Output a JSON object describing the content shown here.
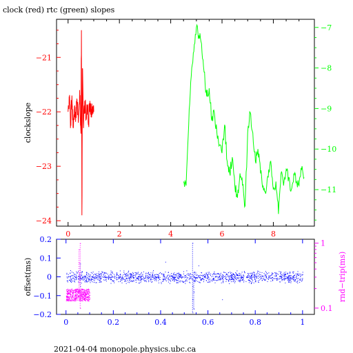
{
  "chart_data": [
    {
      "type": "line",
      "title": "clock (red) rtc (green) slopes",
      "ylabel": "clockslope",
      "xlim": [
        -0.45,
        9.6
      ],
      "x_ticks": [
        0,
        2,
        4,
        6,
        8
      ],
      "y_left": {
        "lim": [
          -24.1,
          -20.3
        ],
        "ticks": [
          -24,
          -23,
          -22,
          -21
        ],
        "color": "#ff0000"
      },
      "y_right": {
        "lim": [
          -11.9,
          -6.8
        ],
        "ticks": [
          -11,
          -10,
          -9,
          -8,
          -7
        ],
        "color": "#00ff00"
      },
      "series": [
        {
          "name": "clock",
          "color": "#ff0000",
          "axis": "left",
          "x": [
            0.0,
            0.05,
            0.1,
            0.15,
            0.2,
            0.25,
            0.3,
            0.35,
            0.4,
            0.45,
            0.5,
            0.52,
            0.54,
            0.56,
            0.6,
            0.65,
            0.7,
            0.75,
            0.8,
            0.85,
            0.9,
            0.95,
            1.0
          ],
          "y": [
            -22.0,
            -21.8,
            -22.2,
            -21.7,
            -22.3,
            -21.9,
            -22.1,
            -21.8,
            -22.2,
            -21.6,
            -22.4,
            -20.5,
            -23.9,
            -21.2,
            -22.3,
            -21.8,
            -22.1,
            -21.9,
            -22.2,
            -21.8,
            -22.1,
            -21.9,
            -22.0
          ]
        },
        {
          "name": "rtc",
          "color": "#00ff00",
          "axis": "right",
          "x": [
            4.5,
            4.6,
            4.7,
            4.8,
            4.9,
            5.0,
            5.1,
            5.2,
            5.3,
            5.4,
            5.5,
            5.6,
            5.7,
            5.8,
            5.9,
            6.0,
            6.1,
            6.2,
            6.3,
            6.4,
            6.5,
            6.6,
            6.7,
            6.8,
            6.9,
            7.0,
            7.1,
            7.2,
            7.3,
            7.4,
            7.5,
            7.6,
            7.7,
            7.8,
            7.9,
            8.0,
            8.1,
            8.2,
            8.3,
            8.4,
            8.5,
            8.6,
            8.7,
            8.8,
            8.9,
            9.0,
            9.1,
            9.2
          ],
          "y": [
            -10.8,
            -10.9,
            -9.4,
            -8.2,
            -7.6,
            -7.0,
            -7.2,
            -7.4,
            -8.1,
            -8.7,
            -8.5,
            -9.3,
            -9.1,
            -9.6,
            -9.9,
            -10.1,
            -9.4,
            -10.3,
            -10.6,
            -10.2,
            -10.9,
            -11.2,
            -10.6,
            -10.9,
            -11.4,
            -9.6,
            -9.1,
            -9.6,
            -10.3,
            -10.0,
            -10.6,
            -10.9,
            -11.1,
            -10.7,
            -10.3,
            -11.0,
            -10.8,
            -11.6,
            -10.6,
            -10.9,
            -10.5,
            -10.7,
            -11.0,
            -10.6,
            -10.8,
            -10.9,
            -10.5,
            -10.7
          ]
        }
      ]
    },
    {
      "type": "scatter",
      "ylabel_left": "offset(ms)",
      "ylabel_right": "rnd−trip(ms)",
      "xlim": [
        -0.04,
        1.05
      ],
      "x_ticks": [
        0,
        0.2,
        0.4,
        0.6,
        0.8,
        1
      ],
      "x_tick_labels": [
        "0",
        "0.2",
        "0.4",
        "0.6",
        "0.8",
        "1"
      ],
      "y_left": {
        "lim": [
          -0.2,
          0.2
        ],
        "ticks": [
          -0.2,
          -0.1,
          0,
          0.1,
          0.2
        ],
        "tick_labels": [
          "−0.2",
          "−0.1",
          "0",
          "0.1",
          "0.2"
        ],
        "color": "#0000ff"
      },
      "y_right": {
        "scale": "log",
        "lim": [
          0.08,
          1.15
        ],
        "ticks": [
          0.1,
          1
        ],
        "tick_labels": [
          "0.1",
          "1"
        ],
        "color": "#ff00ff"
      },
      "series": [
        {
          "name": "offset",
          "color": "#0000ff",
          "axis": "left",
          "band": {
            "x": [
              0,
              1
            ],
            "center": 0.0,
            "spread": 0.018
          },
          "spikes": [
            {
              "x": 0.06,
              "y": [
                0.0,
                0.07,
                -0.05
              ]
            },
            {
              "x": 0.42,
              "y": [
                0.08
              ]
            },
            {
              "x": 0.535,
              "y": [
                -0.19,
                -0.12,
                -0.05,
                0.18
              ]
            },
            {
              "x": 0.54,
              "y": [
                -0.17,
                -0.08
              ]
            },
            {
              "x": 0.56,
              "y": [
                0.06
              ]
            },
            {
              "x": 0.66,
              "y": [
                -0.12
              ]
            }
          ]
        },
        {
          "name": "rnd-trip",
          "color": "#ff00ff",
          "axis": "right",
          "band": {
            "x": [
              0,
              0.1
            ],
            "low": 0.13,
            "high": 0.2
          },
          "spikes": [
            {
              "x": 0.055,
              "y": [
                0.8,
                0.5,
                0.35,
                0.25
              ]
            },
            {
              "x": 0.06,
              "y": [
                1.0,
                0.1
              ]
            }
          ]
        }
      ]
    }
  ],
  "footer": "2021-04-04 monopole.physics.ubc.ca"
}
